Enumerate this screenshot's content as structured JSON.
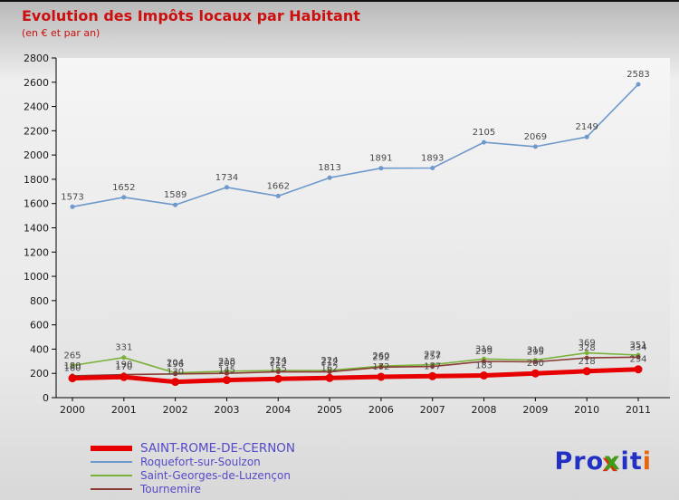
{
  "header": {
    "title": "Evolution des Impôts locaux par Habitant",
    "subtitle": "(en € et par an)",
    "title_color": "#cc0f0f"
  },
  "chart_data": {
    "type": "line",
    "title": "Evolution des Impôts locaux par Habitant",
    "subtitle": "(en € et par an)",
    "xlabel": "",
    "ylabel": "",
    "x": [
      "2000",
      "2001",
      "2002",
      "2003",
      "2004",
      "2005",
      "2006",
      "2007",
      "2008",
      "2009",
      "2010",
      "2011"
    ],
    "ylim": [
      0,
      2800
    ],
    "ytick_step": 200,
    "grid": false,
    "legend_position": "bottom-left",
    "label_color": "#4a4a4a",
    "axis_color": "#000000",
    "series": [
      {
        "name": "SAINT-ROME-DE-CERNON",
        "color": "#e60000",
        "line_width": 5,
        "marker_radius": 4.5,
        "values": [
          160,
          170,
          130,
          145,
          155,
          162,
          172,
          177,
          183,
          200,
          218,
          234
        ]
      },
      {
        "name": "Roquefort-sur-Soulzon",
        "color": "#6e99cc",
        "line_width": 1.6,
        "marker_radius": 2.5,
        "values": [
          1573,
          1652,
          1589,
          1734,
          1662,
          1813,
          1891,
          1893,
          2105,
          2069,
          2149,
          2583
        ]
      },
      {
        "name": "Saint-Georges-de-Luzençon",
        "color": "#7ab239",
        "line_width": 1.6,
        "marker_radius": 2.5,
        "values": [
          265,
          331,
          204,
          218,
          224,
          224,
          260,
          272,
          319,
          310,
          369,
          351
        ]
      },
      {
        "name": "Tournemire",
        "color": "#8a3b34",
        "line_width": 1.6,
        "marker_radius": 2.5,
        "values": [
          180,
          190,
          196,
          200,
          213,
          212,
          252,
          257,
          299,
          295,
          328,
          334
        ]
      }
    ]
  },
  "legend": {
    "text_color": "#544bc8"
  },
  "logo": {
    "letters": [
      {
        "ch": "P",
        "color": "#2330c4"
      },
      {
        "ch": "r",
        "color": "#2330c4"
      },
      {
        "ch": "o",
        "color": "#2330c4"
      },
      {
        "ch": "x",
        "color": "#3b9e16"
      },
      {
        "ch": "i",
        "color": "#2330c4"
      },
      {
        "ch": "t",
        "color": "#2330c4"
      },
      {
        "ch": "i",
        "color": "#e8650f"
      }
    ]
  }
}
